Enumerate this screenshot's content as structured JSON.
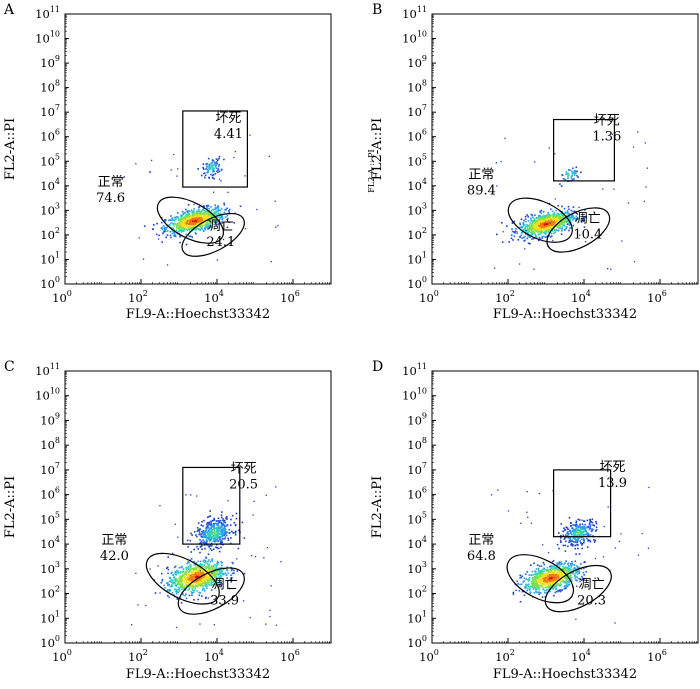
{
  "chart_data": [
    {
      "type": "scatter",
      "panel": "A",
      "xlabel": "FL9-A::Hoechst33342",
      "ylabel": "FL2-A::PI",
      "x_scale": "log",
      "y_scale": "log",
      "xlim": [
        1,
        10000000
      ],
      "ylim": [
        1,
        100000000000
      ],
      "x_ticks": [
        "10^0",
        "10^2",
        "10^4",
        "10^6"
      ],
      "y_ticks": [
        "10^0",
        "10^1",
        "10^2",
        "10^3",
        "10^4",
        "10^5",
        "10^6",
        "10^7",
        "10^8",
        "10^9",
        "10^10",
        "10^11"
      ],
      "gates": [
        {
          "label": "坏死",
          "value": "4.41"
        },
        {
          "label": "正常",
          "value": "74.6"
        },
        {
          "label": "凋亡",
          "value": "24.1"
        }
      ],
      "clusters": [
        {
          "x": 2500,
          "y": 400,
          "spread_x": 0.38,
          "spread_y": 0.22,
          "n": 900
        },
        {
          "x": 7000,
          "y": 60000,
          "spread_x": 0.12,
          "spread_y": 0.18,
          "n": 90
        }
      ]
    },
    {
      "type": "scatter",
      "panel": "B",
      "xlabel": "FL9-A::Hoechst33342",
      "ylabel": "FL2-A::PI",
      "ylabel_small": "FL2-A :: PI",
      "x_scale": "log",
      "y_scale": "log",
      "xlim": [
        1,
        10000000
      ],
      "ylim": [
        1,
        100000000000
      ],
      "x_ticks": [
        "10^0",
        "10^2",
        "10^4",
        "10^6"
      ],
      "y_ticks": [
        "10^0",
        "10^1",
        "10^2",
        "10^3",
        "10^4",
        "10^5",
        "10^6",
        "10^7",
        "10^8",
        "10^9",
        "10^10",
        "10^11"
      ],
      "gates": [
        {
          "label": "坏死",
          "value": "1.36"
        },
        {
          "label": "正常",
          "value": "89.4"
        },
        {
          "label": "凋亡",
          "value": "10.4"
        }
      ],
      "clusters": [
        {
          "x": 1000,
          "y": 300,
          "spread_x": 0.35,
          "spread_y": 0.22,
          "n": 900
        },
        {
          "x": 4000,
          "y": 30000,
          "spread_x": 0.14,
          "spread_y": 0.16,
          "n": 45
        }
      ]
    },
    {
      "type": "scatter",
      "panel": "C",
      "xlabel": "FL9-A::Hoechst33342",
      "ylabel": "FL2-A::PI",
      "x_scale": "log",
      "y_scale": "log",
      "xlim": [
        1,
        10000000
      ],
      "ylim": [
        1,
        100000000000
      ],
      "x_ticks": [
        "10^0",
        "10^2",
        "10^4",
        "10^6"
      ],
      "y_ticks": [
        "10^0",
        "10^1",
        "10^2",
        "10^3",
        "10^4",
        "10^5",
        "10^6",
        "10^7",
        "10^8",
        "10^9",
        "10^10",
        "10^11"
      ],
      "gates": [
        {
          "label": "坏死",
          "value": "20.5"
        },
        {
          "label": "正常",
          "value": "42.0"
        },
        {
          "label": "凋亡",
          "value": "33.9"
        }
      ],
      "clusters": [
        {
          "x": 2800,
          "y": 500,
          "spread_x": 0.38,
          "spread_y": 0.3,
          "n": 850
        },
        {
          "x": 8000,
          "y": 30000,
          "spread_x": 0.25,
          "spread_y": 0.28,
          "n": 420
        }
      ]
    },
    {
      "type": "scatter",
      "panel": "D",
      "xlabel": "FL9-A::Hoechst33342",
      "ylabel": "FL2-A::PI",
      "x_scale": "log",
      "y_scale": "log",
      "xlim": [
        1,
        10000000
      ],
      "ylim": [
        1,
        100000000000
      ],
      "x_ticks": [
        "10^0",
        "10^2",
        "10^4",
        "10^6"
      ],
      "y_ticks": [
        "10^0",
        "10^1",
        "10^2",
        "10^3",
        "10^4",
        "10^5",
        "10^6",
        "10^7",
        "10^8",
        "10^9",
        "10^10",
        "10^11"
      ],
      "gates": [
        {
          "label": "坏死",
          "value": "13.9"
        },
        {
          "label": "正常",
          "value": "64.8"
        },
        {
          "label": "凋亡",
          "value": "20.3"
        }
      ],
      "clusters": [
        {
          "x": 1300,
          "y": 450,
          "spread_x": 0.36,
          "spread_y": 0.25,
          "n": 900
        },
        {
          "x": 7000,
          "y": 30000,
          "spread_x": 0.22,
          "spread_y": 0.25,
          "n": 300
        }
      ]
    }
  ]
}
